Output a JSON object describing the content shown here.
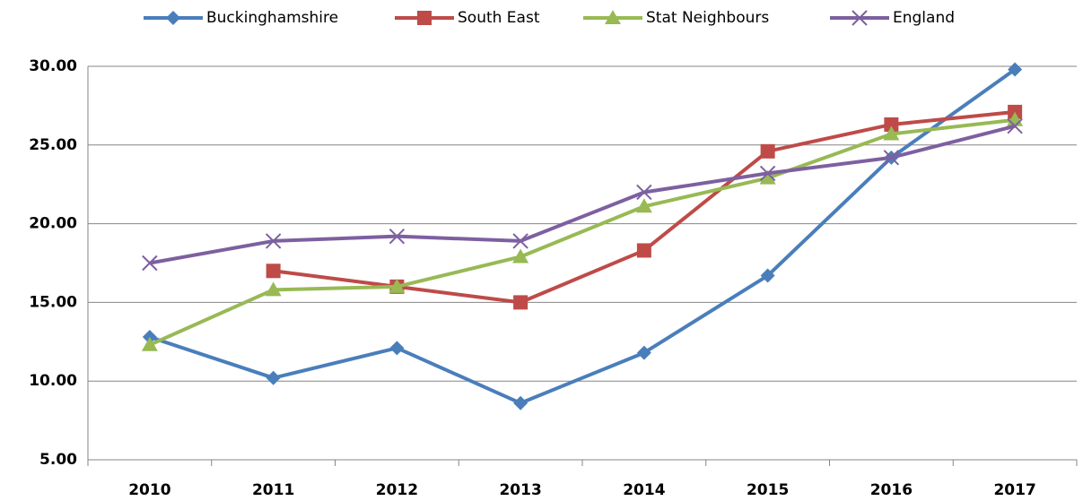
{
  "chart_data": {
    "type": "line",
    "categories": [
      "2010",
      "2011",
      "2012",
      "2013",
      "2014",
      "2015",
      "2016",
      "2017"
    ],
    "series": [
      {
        "name": "Buckinghamshire",
        "color": "#4a7ebb",
        "marker": "diamond",
        "values": [
          12.8,
          10.2,
          12.1,
          8.6,
          11.8,
          16.7,
          24.2,
          29.8
        ]
      },
      {
        "name": "South East",
        "color": "#be4b48",
        "marker": "square",
        "values": [
          null,
          17.0,
          16.0,
          15.0,
          18.3,
          24.6,
          26.3,
          27.1
        ]
      },
      {
        "name": "Stat Neighbours",
        "color": "#98b954",
        "marker": "triangle",
        "values": [
          12.3,
          15.8,
          16.0,
          17.9,
          21.1,
          22.9,
          25.7,
          26.6
        ]
      },
      {
        "name": "England",
        "color": "#7d60a0",
        "marker": "x",
        "values": [
          17.5,
          18.9,
          19.2,
          18.9,
          22.0,
          23.2,
          24.2,
          26.2
        ]
      }
    ],
    "ylim": [
      5,
      30
    ],
    "yticks": [
      {
        "value": 5,
        "label": "5.00"
      },
      {
        "value": 10,
        "label": "10.00"
      },
      {
        "value": 15,
        "label": "15.00"
      },
      {
        "value": 20,
        "label": "20.00"
      },
      {
        "value": 25,
        "label": "25.00"
      },
      {
        "value": 30,
        "label": "30.00"
      }
    ],
    "grid": true,
    "legend": "top"
  }
}
